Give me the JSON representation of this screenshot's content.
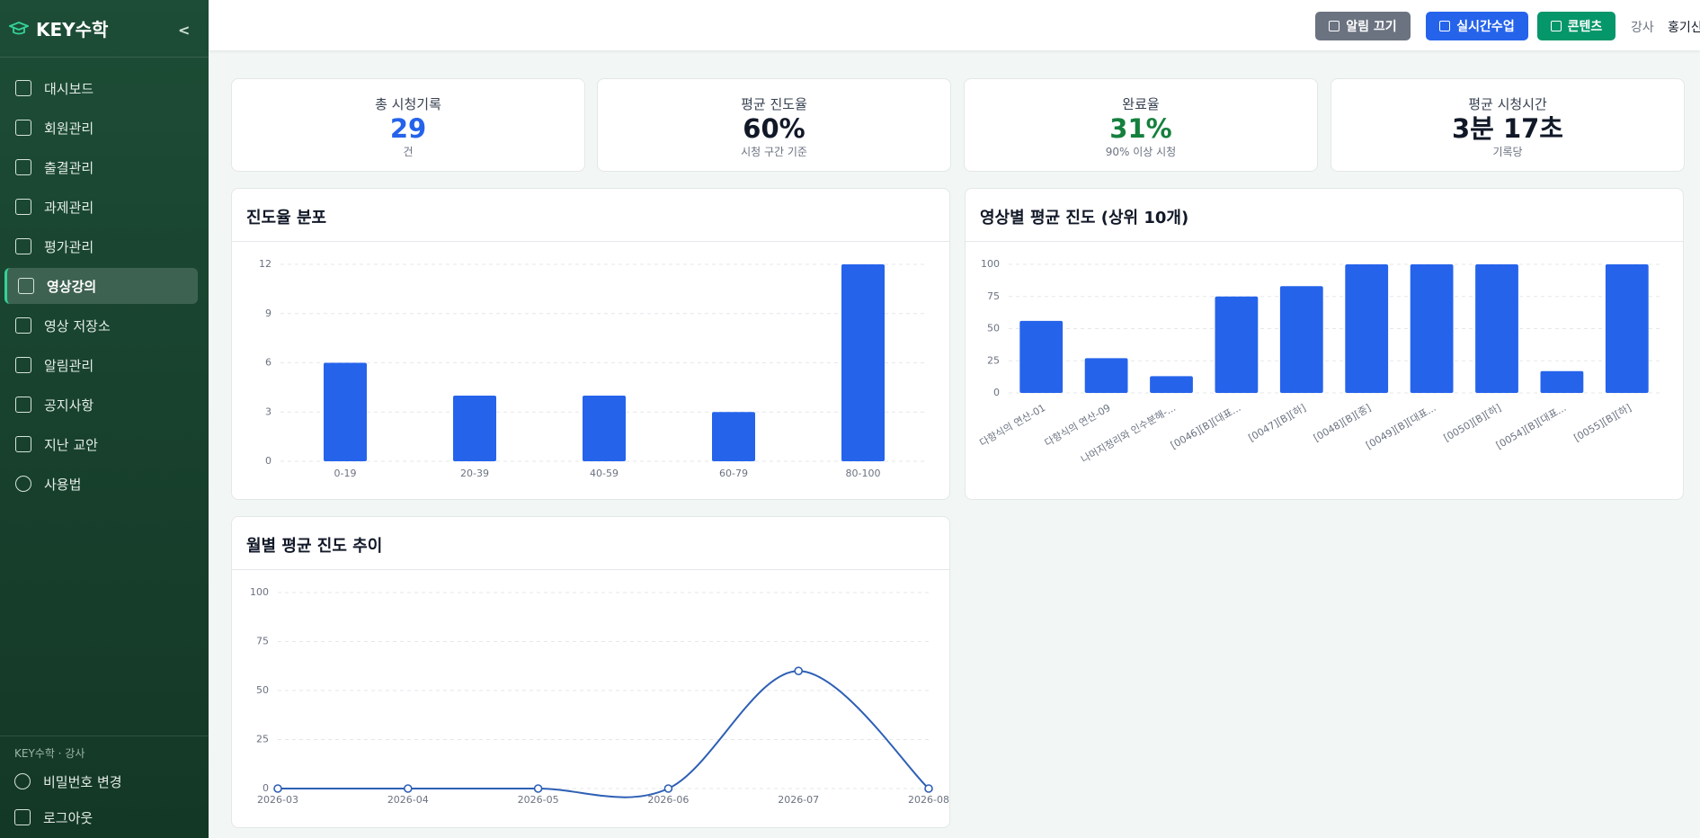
{
  "sidebar": {
    "brand": "KEY수학",
    "menu": [
      "대시보드",
      "회원관리",
      "출결관리",
      "과제관리",
      "평가관리",
      "영상강의",
      "영상 저장소",
      "알림관리",
      "공지사항",
      "지난 교안",
      "사용법"
    ],
    "footer_label": "KEY수학 · 강사",
    "footer_menu": [
      "비밀번호 변경",
      "로그아웃"
    ]
  },
  "topbar": {
    "buttons": [
      "알림 끄기",
      "실시간수업",
      "콘텐츠"
    ],
    "role": "강사",
    "user": "홍기신"
  },
  "stats": [
    {
      "label": "총 시청기록",
      "value": "29",
      "sub": "건"
    },
    {
      "label": "평균 진도율",
      "value": "60%",
      "sub": "시청 구간 기준"
    },
    {
      "label": "완료율",
      "value": "31%",
      "sub": "90% 이상 시청"
    },
    {
      "label": "평균 시청시간",
      "value": "3분 17초",
      "sub": "기록당"
    }
  ],
  "chart_data": [
    {
      "type": "bar",
      "title": "진도율 분포",
      "categories": [
        "0-19",
        "20-39",
        "40-59",
        "60-79",
        "80-100"
      ],
      "values": [
        6,
        4,
        4,
        3,
        12
      ],
      "color": "#2563eb",
      "ylim": [
        0,
        12
      ],
      "yticks": [
        0,
        3,
        6,
        9,
        12
      ],
      "grid": true
    },
    {
      "type": "bar",
      "title": "영상별 평균 진도 (상위 10개)",
      "categories": [
        "다항식의 연산-01",
        "다항식의 연산-09",
        "나머지정리와 인수분해-...",
        "[0046][B][대표...",
        "[0047][B][하]",
        "[0048][B][중]",
        "[0049][B][대표...",
        "[0050][B][하]",
        "[0054][B][대표...",
        "[0055][B][하]"
      ],
      "values": [
        56,
        27,
        13,
        75,
        83,
        100,
        100,
        100,
        17,
        100
      ],
      "color": "#2563eb",
      "ylim": [
        0,
        100
      ],
      "yticks": [
        0,
        25,
        50,
        75,
        100
      ],
      "grid": true
    },
    {
      "type": "line",
      "title": "월별 평균 진도 추이",
      "categories": [
        "2026-03",
        "2026-04",
        "2026-05",
        "2026-06",
        "2026-07",
        "2026-08"
      ],
      "values": [
        0,
        0,
        0,
        0,
        60,
        0
      ],
      "color": "#2d5fb5",
      "ylim": [
        0,
        100
      ],
      "yticks": [
        0,
        25,
        50,
        75,
        100
      ],
      "grid": true
    }
  ]
}
